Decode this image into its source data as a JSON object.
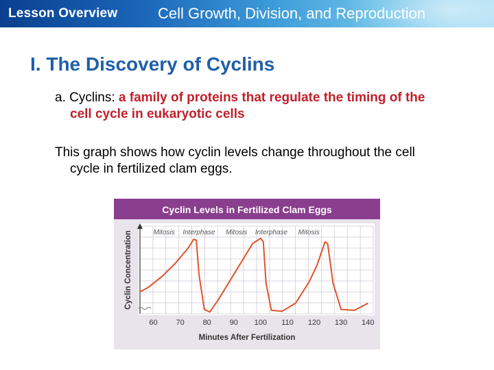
{
  "header": {
    "lesson_label": "Lesson Overview",
    "title": "Cell Growth, Division, and Reproduction"
  },
  "slide": {
    "title": "I. The Discovery of Cyclins",
    "bullet_a": {
      "prefix": "a. Cyclins: ",
      "highlight_line1": "a family of proteins that regulate the timing of the",
      "highlight_line2": "cell cycle in eukaryotic cells"
    },
    "bullet_b": {
      "line1": "This graph shows how cyclin levels change throughout the cell",
      "line2": "cycle in fertilized clam eggs."
    }
  },
  "colors": {
    "accent_title": "#1f5fa8",
    "highlight_red": "#c0202a",
    "chart_header": "#8a3e8e",
    "chart_line": "#e0532a"
  },
  "chart_data": {
    "type": "line",
    "title": "Cyclin Levels in Fertilized Clam Eggs",
    "xlabel": "Minutes After Fertilization",
    "ylabel": "Cyclin Concentration",
    "x_ticks": [
      60,
      70,
      80,
      90,
      100,
      110,
      120,
      130,
      140
    ],
    "xlim": [
      55,
      142
    ],
    "ylim": [
      0,
      1
    ],
    "grid": true,
    "y_axis_numbered": false,
    "phases": [
      "Mitosis",
      "Interphase",
      "Mitosis",
      "Interphase",
      "Mitosis"
    ],
    "series": [
      {
        "x": [
          55,
          58,
          63,
          68,
          73,
          75,
          76,
          77,
          79,
          81,
          84,
          88,
          93,
          97,
          100,
          101,
          102,
          104,
          108,
          113,
          118,
          121,
          123,
          124,
          125,
          127,
          130,
          135,
          140
        ],
        "y": [
          0.25,
          0.3,
          0.42,
          0.57,
          0.75,
          0.85,
          0.84,
          0.45,
          0.05,
          0.02,
          0.15,
          0.35,
          0.6,
          0.8,
          0.86,
          0.82,
          0.35,
          0.04,
          0.03,
          0.12,
          0.36,
          0.55,
          0.73,
          0.82,
          0.8,
          0.35,
          0.05,
          0.04,
          0.12
        ]
      }
    ]
  }
}
